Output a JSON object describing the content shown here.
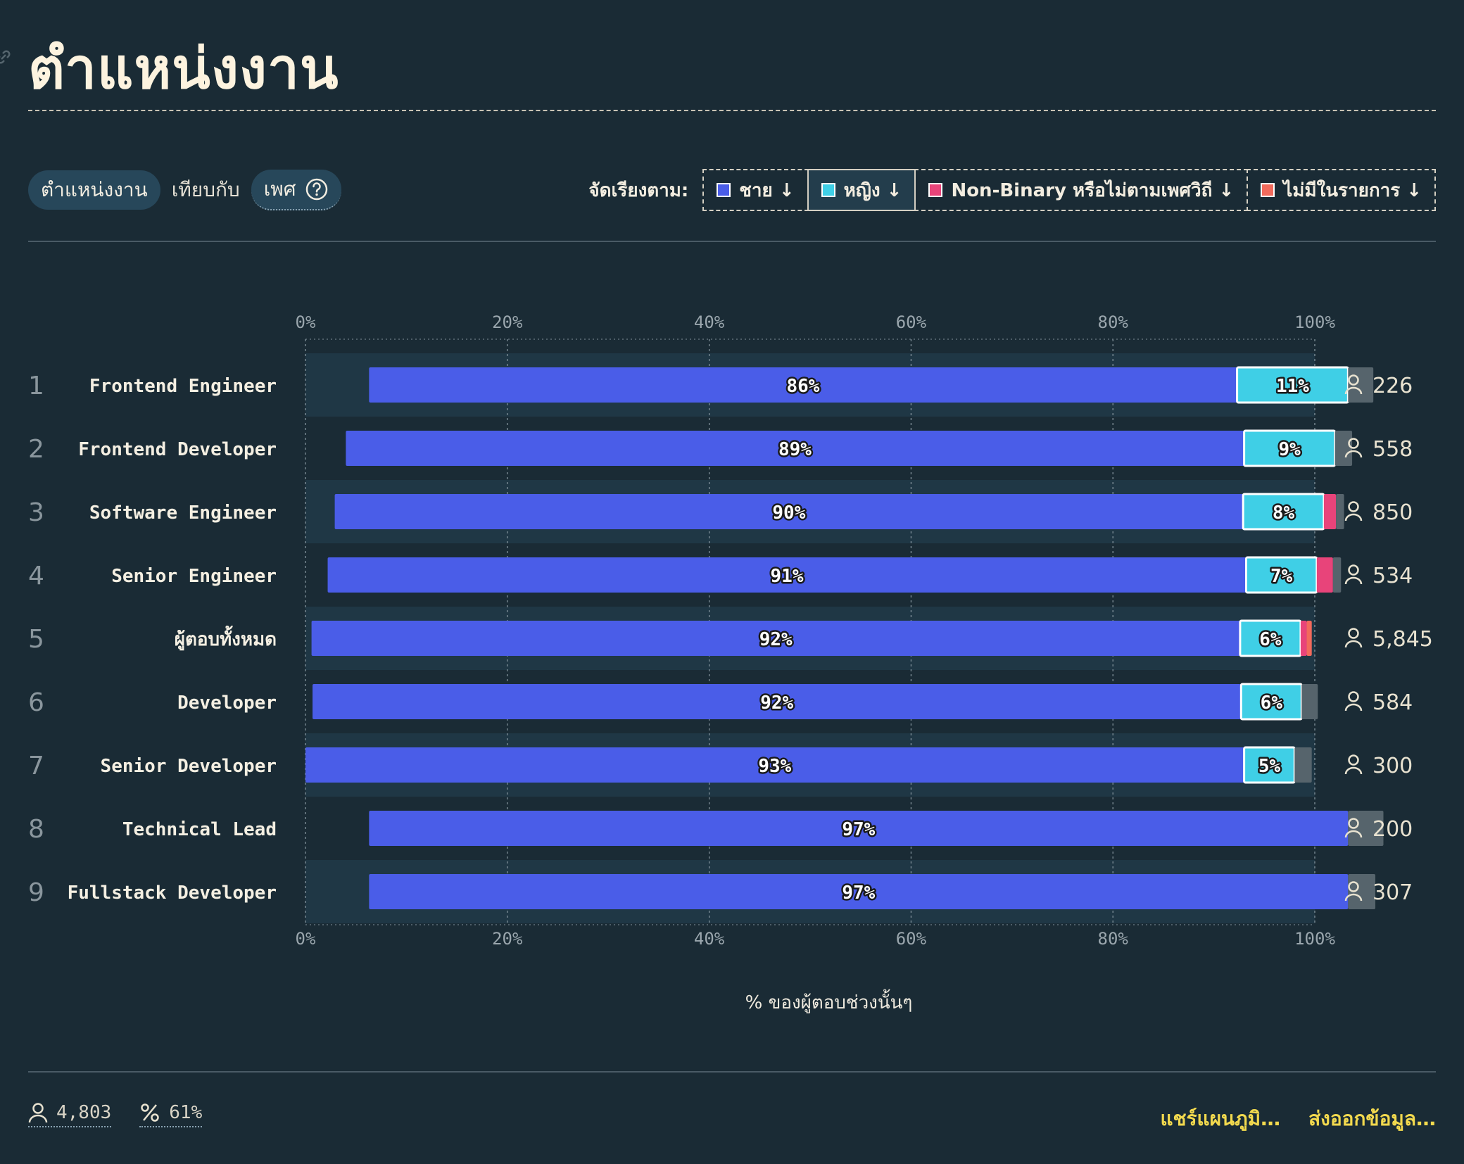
{
  "title": "ตำแหน่งงาน",
  "controls": {
    "primary": "ตำแหน่งงาน",
    "compare_label": "เทียบกับ",
    "secondary": "เพศ"
  },
  "sort": {
    "label": "จัดเรียงตาม:",
    "options": [
      {
        "label": "ชาย ↓",
        "color": "#4a5de8"
      },
      {
        "label": "หญิง ↓",
        "color": "#3fcfe6",
        "active": true
      },
      {
        "label": "Non-Binary หรือไม่ตามเพศวิถี ↓",
        "color": "#e8447a"
      },
      {
        "label": "ไม่มีในรายการ ↓",
        "color": "#f26a5c"
      }
    ]
  },
  "chart_data": {
    "type": "bar",
    "stacked": true,
    "orientation": "horizontal",
    "x_ticks": [
      "0%",
      "20%",
      "40%",
      "60%",
      "80%",
      "100%"
    ],
    "xlim": [
      0,
      100
    ],
    "xlabel": "% ของผู้ตอบช่วงนั้นๆ",
    "categories": [
      "Frontend Engineer",
      "Frontend Developer",
      "Software Engineer",
      "Senior Engineer",
      "ผู้ตอบทั้งหมด",
      "Developer",
      "Senior Developer",
      "Technical Lead",
      "Fullstack Developer"
    ],
    "ranks": [
      "1",
      "2",
      "3",
      "4",
      "5",
      "6",
      "7",
      "8",
      "9"
    ],
    "respondents": [
      "226",
      "558",
      "850",
      "534",
      "5,845",
      "584",
      "300",
      "200",
      "307"
    ],
    "series": [
      {
        "name": "ชาย",
        "color": "#4a5de8",
        "labels": [
          "86%",
          "89%",
          "90%",
          "91%",
          "92%",
          "92%",
          "93%",
          "97%",
          "97%"
        ],
        "values": [
          86,
          89,
          90,
          91,
          92,
          92,
          93,
          97,
          97
        ]
      },
      {
        "name": "หญิง",
        "color": "#3fcfe6",
        "labels": [
          "11%",
          "9%",
          "8%",
          "7%",
          "6%",
          "6%",
          "5%",
          "",
          ""
        ],
        "values": [
          11,
          9,
          8,
          7,
          6,
          6,
          5,
          0,
          0
        ]
      },
      {
        "name": "Non-Binary หรือไม่ตามเพศวิถี",
        "color": "#e8447a",
        "labels": [
          "",
          "",
          "",
          "",
          "",
          "",
          "",
          "",
          ""
        ],
        "values": [
          0,
          0,
          1.2,
          1.6,
          0.6,
          0,
          0,
          0,
          0
        ]
      },
      {
        "name": "ไม่มีในรายการ",
        "color": "#f26a5c",
        "labels": [
          "",
          "",
          "",
          "",
          "",
          "",
          "",
          "",
          ""
        ],
        "values": [
          0,
          0,
          0,
          0,
          0.5,
          0,
          0,
          0,
          0
        ]
      },
      {
        "name": "",
        "color": "#56646c",
        "labels": [
          "",
          "",
          "",
          "",
          "",
          "",
          "",
          "",
          ""
        ],
        "values": [
          2.5,
          1.7,
          0.8,
          0.8,
          0,
          1.6,
          1.7,
          3.5,
          2.7
        ]
      }
    ],
    "bar_start": [
      6.3,
      4.0,
      2.9,
      2.2,
      0.6,
      0.7,
      0,
      6.3,
      6.3
    ],
    "grid": true
  },
  "footer": {
    "respondents": "4,803",
    "percent": "61%",
    "share": "แชร์แผนภูมิ…",
    "export": "ส่งออกข้อมูล…"
  }
}
